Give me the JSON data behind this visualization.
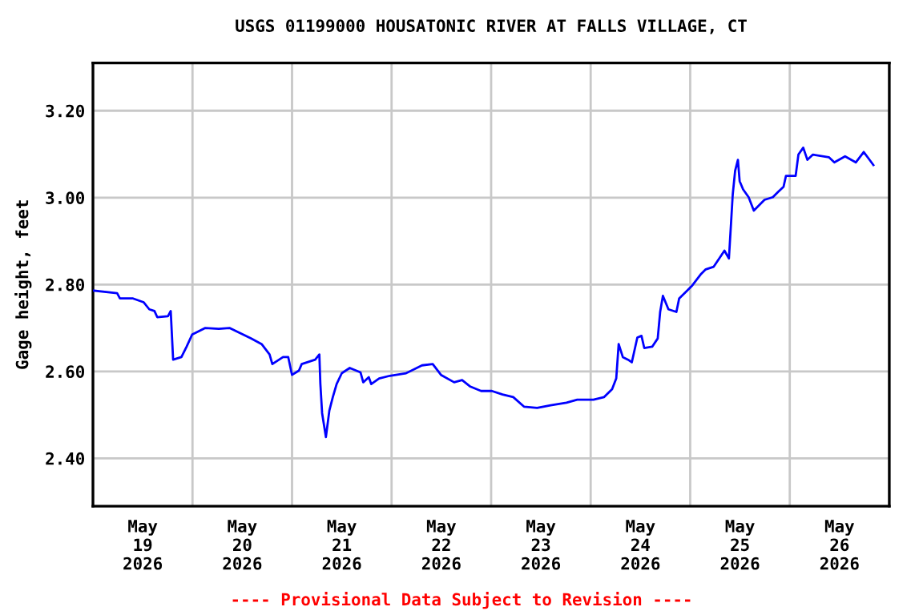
{
  "chart_data": {
    "type": "line",
    "title": "USGS 01199000 HOUSATONIC RIVER AT FALLS VILLAGE, CT",
    "ylabel": "Gage height, feet",
    "annotations": [
      "---- Provisional Data Subject to Revision ----"
    ],
    "x": [
      "2026-05-19T00:15",
      "2026-05-19T05:50",
      "2026-05-19T06:30",
      "2026-05-19T09:40",
      "2026-05-19T12:15",
      "2026-05-19T13:35",
      "2026-05-19T14:50",
      "2026-05-19T15:30",
      "2026-05-19T18:05",
      "2026-05-19T18:45",
      "2026-05-19T19:20",
      "2026-05-19T21:20",
      "2026-05-19T22:35",
      "2026-05-19T23:55",
      "2026-05-20T03:05",
      "2026-05-20T06:20",
      "2026-05-20T08:55",
      "2026-05-20T11:30",
      "2026-05-20T14:05",
      "2026-05-20T16:40",
      "2026-05-20T18:35",
      "2026-05-20T19:15",
      "2026-05-20T21:50",
      "2026-05-20T23:05",
      "2026-05-21T00:00",
      "2026-05-21T01:40",
      "2026-05-21T02:20",
      "2026-05-21T05:35",
      "2026-05-21T06:35",
      "2026-05-21T06:50",
      "2026-05-21T07:15",
      "2026-05-21T08:10",
      "2026-05-21T09:00",
      "2026-05-21T09:50",
      "2026-05-21T10:45",
      "2026-05-21T12:00",
      "2026-05-21T13:55",
      "2026-05-21T16:30",
      "2026-05-21T17:10",
      "2026-05-21T18:30",
      "2026-05-21T19:05",
      "2026-05-21T21:00",
      "2026-05-21T23:35",
      "2026-05-22T03:30",
      "2026-05-22T07:20",
      "2026-05-22T09:55",
      "2026-05-22T11:55",
      "2026-05-22T15:05",
      "2026-05-22T17:00",
      "2026-05-22T19:00",
      "2026-05-22T21:35",
      "2026-05-23T00:10",
      "2026-05-23T02:45",
      "2026-05-23T05:20",
      "2026-05-23T07:55",
      "2026-05-23T11:05",
      "2026-05-23T14:20",
      "2026-05-23T18:10",
      "2026-05-23T20:45",
      "2026-05-24T00:40",
      "2026-05-24T03:15",
      "2026-05-24T05:10",
      "2026-05-24T06:10",
      "2026-05-24T06:45",
      "2026-05-24T07:45",
      "2026-05-24T09:00",
      "2026-05-24T09:55",
      "2026-05-24T11:15",
      "2026-05-24T12:15",
      "2026-05-24T12:55",
      "2026-05-24T14:50",
      "2026-05-24T16:10",
      "2026-05-24T16:45",
      "2026-05-24T17:25",
      "2026-05-24T18:45",
      "2026-05-24T20:40",
      "2026-05-24T21:20",
      "2026-05-24T23:15",
      "2026-05-25T00:30",
      "2026-05-25T02:30",
      "2026-05-25T03:45",
      "2026-05-25T05:40",
      "2026-05-25T07:00",
      "2026-05-25T08:15",
      "2026-05-25T09:20",
      "2026-05-25T09:50",
      "2026-05-25T10:15",
      "2026-05-25T10:50",
      "2026-05-25T11:30",
      "2026-05-25T11:55",
      "2026-05-25T12:45",
      "2026-05-25T14:05",
      "2026-05-25T15:20",
      "2026-05-25T16:40",
      "2026-05-25T17:55",
      "2026-05-25T19:55",
      "2026-05-25T21:10",
      "2026-05-25T22:30",
      "2026-05-25T23:05",
      "2026-05-26T01:25",
      "2026-05-26T02:05",
      "2026-05-26T03:15",
      "2026-05-26T04:15",
      "2026-05-26T05:35",
      "2026-05-26T09:25",
      "2026-05-26T10:45",
      "2026-05-26T13:20",
      "2026-05-26T15:55",
      "2026-05-26T17:50",
      "2026-05-26T19:05",
      "2026-05-26T20:10"
    ],
    "series": [
      {
        "color": "#0000ff",
        "values": [
          2.786,
          2.78,
          2.768,
          2.768,
          2.759,
          2.743,
          2.739,
          2.725,
          2.727,
          2.739,
          2.627,
          2.633,
          2.657,
          2.685,
          2.7,
          2.698,
          2.7,
          2.688,
          2.676,
          2.663,
          2.639,
          2.617,
          2.633,
          2.633,
          2.592,
          2.602,
          2.617,
          2.627,
          2.639,
          2.571,
          2.504,
          2.449,
          2.51,
          2.541,
          2.571,
          2.596,
          2.608,
          2.598,
          2.575,
          2.587,
          2.571,
          2.584,
          2.59,
          2.596,
          2.614,
          2.617,
          2.592,
          2.575,
          2.58,
          2.565,
          2.555,
          2.555,
          2.547,
          2.541,
          2.519,
          2.516,
          2.522,
          2.528,
          2.535,
          2.535,
          2.541,
          2.559,
          2.584,
          2.663,
          2.633,
          2.627,
          2.621,
          2.678,
          2.682,
          2.654,
          2.657,
          2.676,
          2.737,
          2.774,
          2.743,
          2.737,
          2.768,
          2.786,
          2.798,
          2.823,
          2.835,
          2.841,
          2.86,
          2.878,
          2.86,
          2.94,
          3.007,
          3.062,
          3.087,
          3.038,
          3.019,
          3.001,
          2.97,
          2.983,
          2.995,
          3.001,
          3.013,
          3.025,
          3.05,
          3.05,
          3.099,
          3.115,
          3.087,
          3.099,
          3.093,
          3.081,
          3.095,
          3.081,
          3.105,
          3.089,
          3.075
        ]
      }
    ],
    "xlim": [
      "2026-05-19T00:00",
      "2026-05-27T00:00"
    ],
    "xticks": [
      {
        "value": "2026-05-19T00:00",
        "label": null
      },
      {
        "value": "2026-05-19T12:00",
        "label": "May\n19\n2026"
      },
      {
        "value": "2026-05-20T00:00",
        "label": null
      },
      {
        "value": "2026-05-20T12:00",
        "label": "May\n20\n2026"
      },
      {
        "value": "2026-05-21T00:00",
        "label": null
      },
      {
        "value": "2026-05-21T12:00",
        "label": "May\n21\n2026"
      },
      {
        "value": "2026-05-22T00:00",
        "label": null
      },
      {
        "value": "2026-05-22T12:00",
        "label": "May\n22\n2026"
      },
      {
        "value": "2026-05-23T00:00",
        "label": null
      },
      {
        "value": "2026-05-23T12:00",
        "label": "May\n23\n2026"
      },
      {
        "value": "2026-05-24T00:00",
        "label": null
      },
      {
        "value": "2026-05-24T12:00",
        "label": "May\n24\n2026"
      },
      {
        "value": "2026-05-25T00:00",
        "label": null
      },
      {
        "value": "2026-05-25T12:00",
        "label": "May\n25\n2026"
      },
      {
        "value": "2026-05-26T00:00",
        "label": null
      },
      {
        "value": "2026-05-26T12:00",
        "label": "May\n26\n2026"
      },
      {
        "value": "2026-05-27T00:00",
        "label": null
      }
    ],
    "ylim": [
      2.29,
      3.31
    ],
    "yticks": [
      {
        "value": 2.4,
        "label": "2.40"
      },
      {
        "value": 2.6,
        "label": "2.60"
      },
      {
        "value": 2.8,
        "label": "2.80"
      },
      {
        "value": 3.0,
        "label": "3.00"
      },
      {
        "value": 3.2,
        "label": "3.20"
      }
    ],
    "grid": true,
    "marker": "none",
    "line_style": "solid"
  }
}
